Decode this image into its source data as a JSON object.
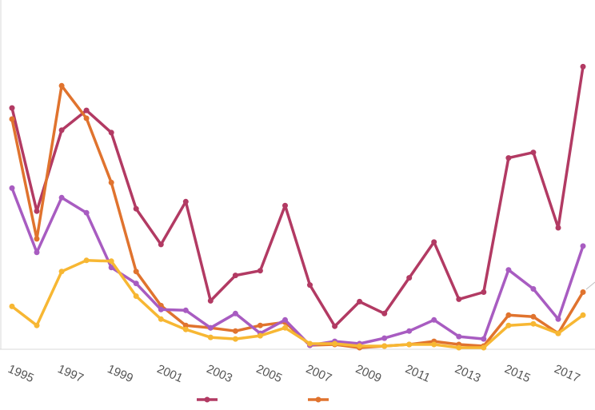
{
  "chart_data": {
    "type": "line",
    "title": "",
    "xlabel": "",
    "ylabel": "",
    "x": [
      1995,
      1996,
      1997,
      1998,
      1999,
      2000,
      2001,
      2002,
      2003,
      2004,
      2005,
      2006,
      2007,
      2008,
      2009,
      2010,
      2011,
      2012,
      2013,
      2014,
      2015,
      2016,
      2017,
      2018
    ],
    "x_tick_labels": [
      "1995",
      "1997",
      "1999",
      "2001",
      "2003",
      "2005",
      "2007",
      "2009",
      "2011",
      "2013",
      "2015",
      "2017"
    ],
    "ylim": [
      0,
      440
    ],
    "grid": false,
    "legend_position": "bottom",
    "series": [
      {
        "color": "#b23a63",
        "values": [
          304,
          174,
          276,
          301,
          273,
          177,
          132,
          186,
          61,
          93,
          99,
          181,
          81,
          29,
          60,
          45,
          90,
          135,
          63,
          72,
          241,
          248,
          153,
          356
        ]
      },
      {
        "color": "#e0732e",
        "values": [
          290,
          139,
          332,
          291,
          210,
          98,
          55,
          30,
          27,
          23,
          30,
          34,
          5,
          6,
          2,
          4,
          6,
          10,
          6,
          4,
          43,
          41,
          20,
          72
        ]
      },
      {
        "color": "#a85cc1",
        "values": [
          203,
          122,
          191,
          172,
          103,
          83,
          50,
          49,
          27,
          45,
          20,
          37,
          5,
          10,
          7,
          14,
          23,
          37,
          16,
          13,
          100,
          76,
          38,
          130
        ]
      },
      {
        "color": "#f7b733",
        "values": [
          54,
          30,
          98,
          112,
          111,
          67,
          38,
          25,
          15,
          13,
          17,
          27,
          7,
          7,
          4,
          4,
          6,
          6,
          2,
          2,
          30,
          32,
          20,
          43
        ]
      }
    ]
  }
}
